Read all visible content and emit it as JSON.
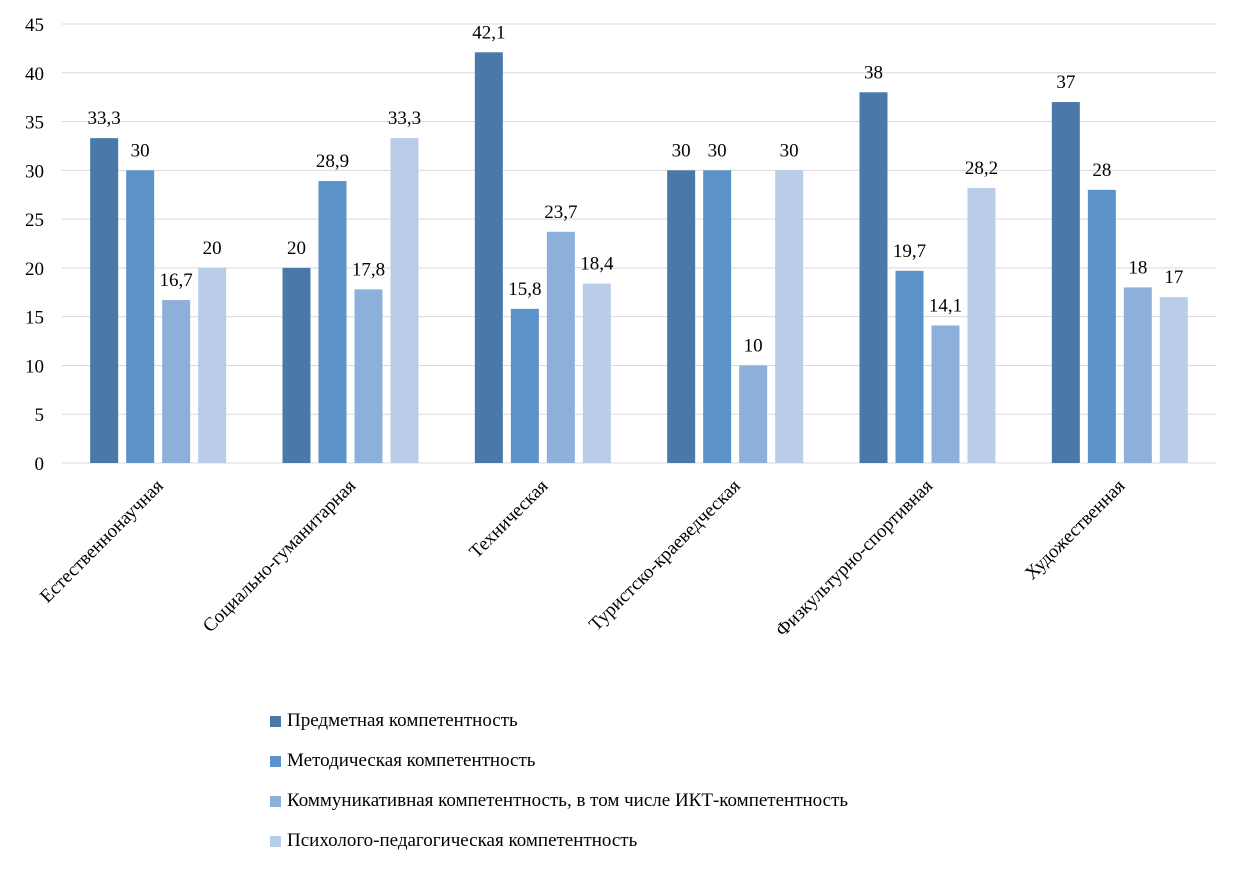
{
  "chart_data": {
    "type": "bar",
    "categories": [
      "Естественнонаучная",
      "Социально-гуманитарная",
      "Техническая",
      "Туристско-краеведческая",
      "Физкультурно-спортивная",
      "Художественная"
    ],
    "series": [
      {
        "name": "Предметная компетентность",
        "color": "#4A78A8",
        "values": [
          33.3,
          20,
          42.1,
          30,
          38,
          37
        ],
        "labels": [
          "33,3",
          "20",
          "42,1",
          "30",
          "38",
          "37"
        ]
      },
      {
        "name": "Методическая компетентность",
        "color": "#5B93C9",
        "values": [
          30,
          28.9,
          15.8,
          30,
          19.7,
          28
        ],
        "labels": [
          "30",
          "28,9",
          "15,8",
          "30",
          "19,7",
          "28"
        ]
      },
      {
        "name": "Коммуникативная компетентность, в том числе ИКТ-компетентность",
        "color": "#8DB0DA",
        "values": [
          16.7,
          17.8,
          23.7,
          10,
          14.1,
          18
        ],
        "labels": [
          "16,7",
          "17,8",
          "23,7",
          "10",
          "14,1",
          "18"
        ]
      },
      {
        "name": "Психолого-педагогическая компетентность",
        "color": "#B9CDE8",
        "values": [
          20,
          33.3,
          18.4,
          30,
          28.2,
          17
        ],
        "labels": [
          "20",
          "33,3",
          "18,4",
          "30",
          "28,2",
          "17"
        ]
      }
    ],
    "yticks": [
      "0",
      "5",
      "10",
      "15",
      "20",
      "25",
      "30",
      "35",
      "40",
      "45"
    ],
    "ylim": [
      0,
      45
    ],
    "grid": true,
    "legend_position": "bottom"
  }
}
